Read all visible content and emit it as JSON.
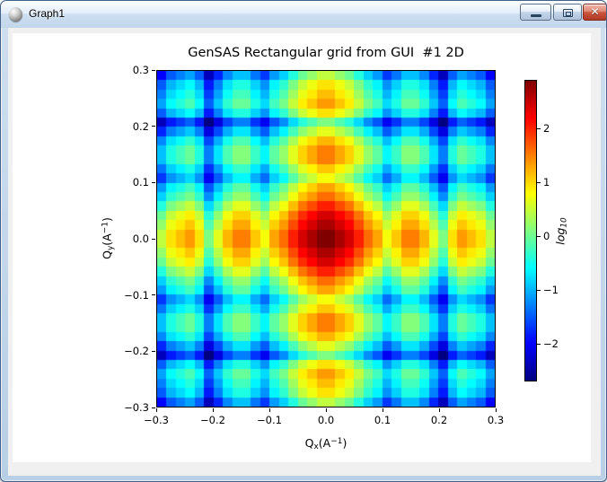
{
  "window": {
    "title": "Graph1",
    "controls": {
      "minimize_label": "minimize",
      "restore_label": "restore",
      "close_glyph": "✕"
    }
  },
  "chart_data": {
    "type": "heatmap",
    "title": "GenSAS Rectangular grid from GUI  #1 2D",
    "xlabel_segments": [
      {
        "text": "Q"
      },
      {
        "text": "x",
        "style": "sub"
      },
      {
        "text": "(A"
      },
      {
        "text": "−1",
        "style": "sup"
      },
      {
        "text": ")"
      }
    ],
    "ylabel_segments": [
      {
        "text": "Q"
      },
      {
        "text": "y",
        "style": "sub"
      },
      {
        "text": "(A"
      },
      {
        "text": "−1",
        "style": "sup"
      },
      {
        "text": ")"
      }
    ],
    "x_range": [
      -0.3,
      0.3
    ],
    "y_range": [
      -0.3,
      0.3
    ],
    "x_tick_labels": [
      "−0.3",
      "−0.2",
      "−0.1",
      "0.0",
      "0.1",
      "0.2",
      "0.3"
    ],
    "y_tick_labels": [
      "0.3",
      "0.2",
      "0.1",
      "0.0",
      "−0.1",
      "−0.2",
      "−0.3"
    ],
    "grid_n": 36,
    "separable": true,
    "profile_log10_half": [
      1.45,
      1.21,
      0.98,
      0.58,
      0.15,
      -0.15,
      -0.7,
      -0.35,
      0.06,
      0.06,
      -0.25,
      -0.8,
      -1.37,
      -0.49,
      -0.1,
      -0.3,
      -0.5,
      -1.0
    ],
    "value_rule": "cell(i,j) = half[floor(|i-17.5|)] + half[floor(|j-17.5|)]  (log10 intensity)",
    "value_domain": [
      -2.7,
      2.9
    ],
    "colormap": "jet",
    "colorbar": {
      "label_segments": [
        {
          "text": "log",
          "style": "italic"
        },
        {
          "text": "10",
          "style": "sub"
        }
      ],
      "tick_labels": [
        "2",
        "1",
        "0",
        "−1",
        "−2"
      ],
      "tick_values": [
        2,
        1,
        0,
        -1,
        -2
      ]
    }
  }
}
